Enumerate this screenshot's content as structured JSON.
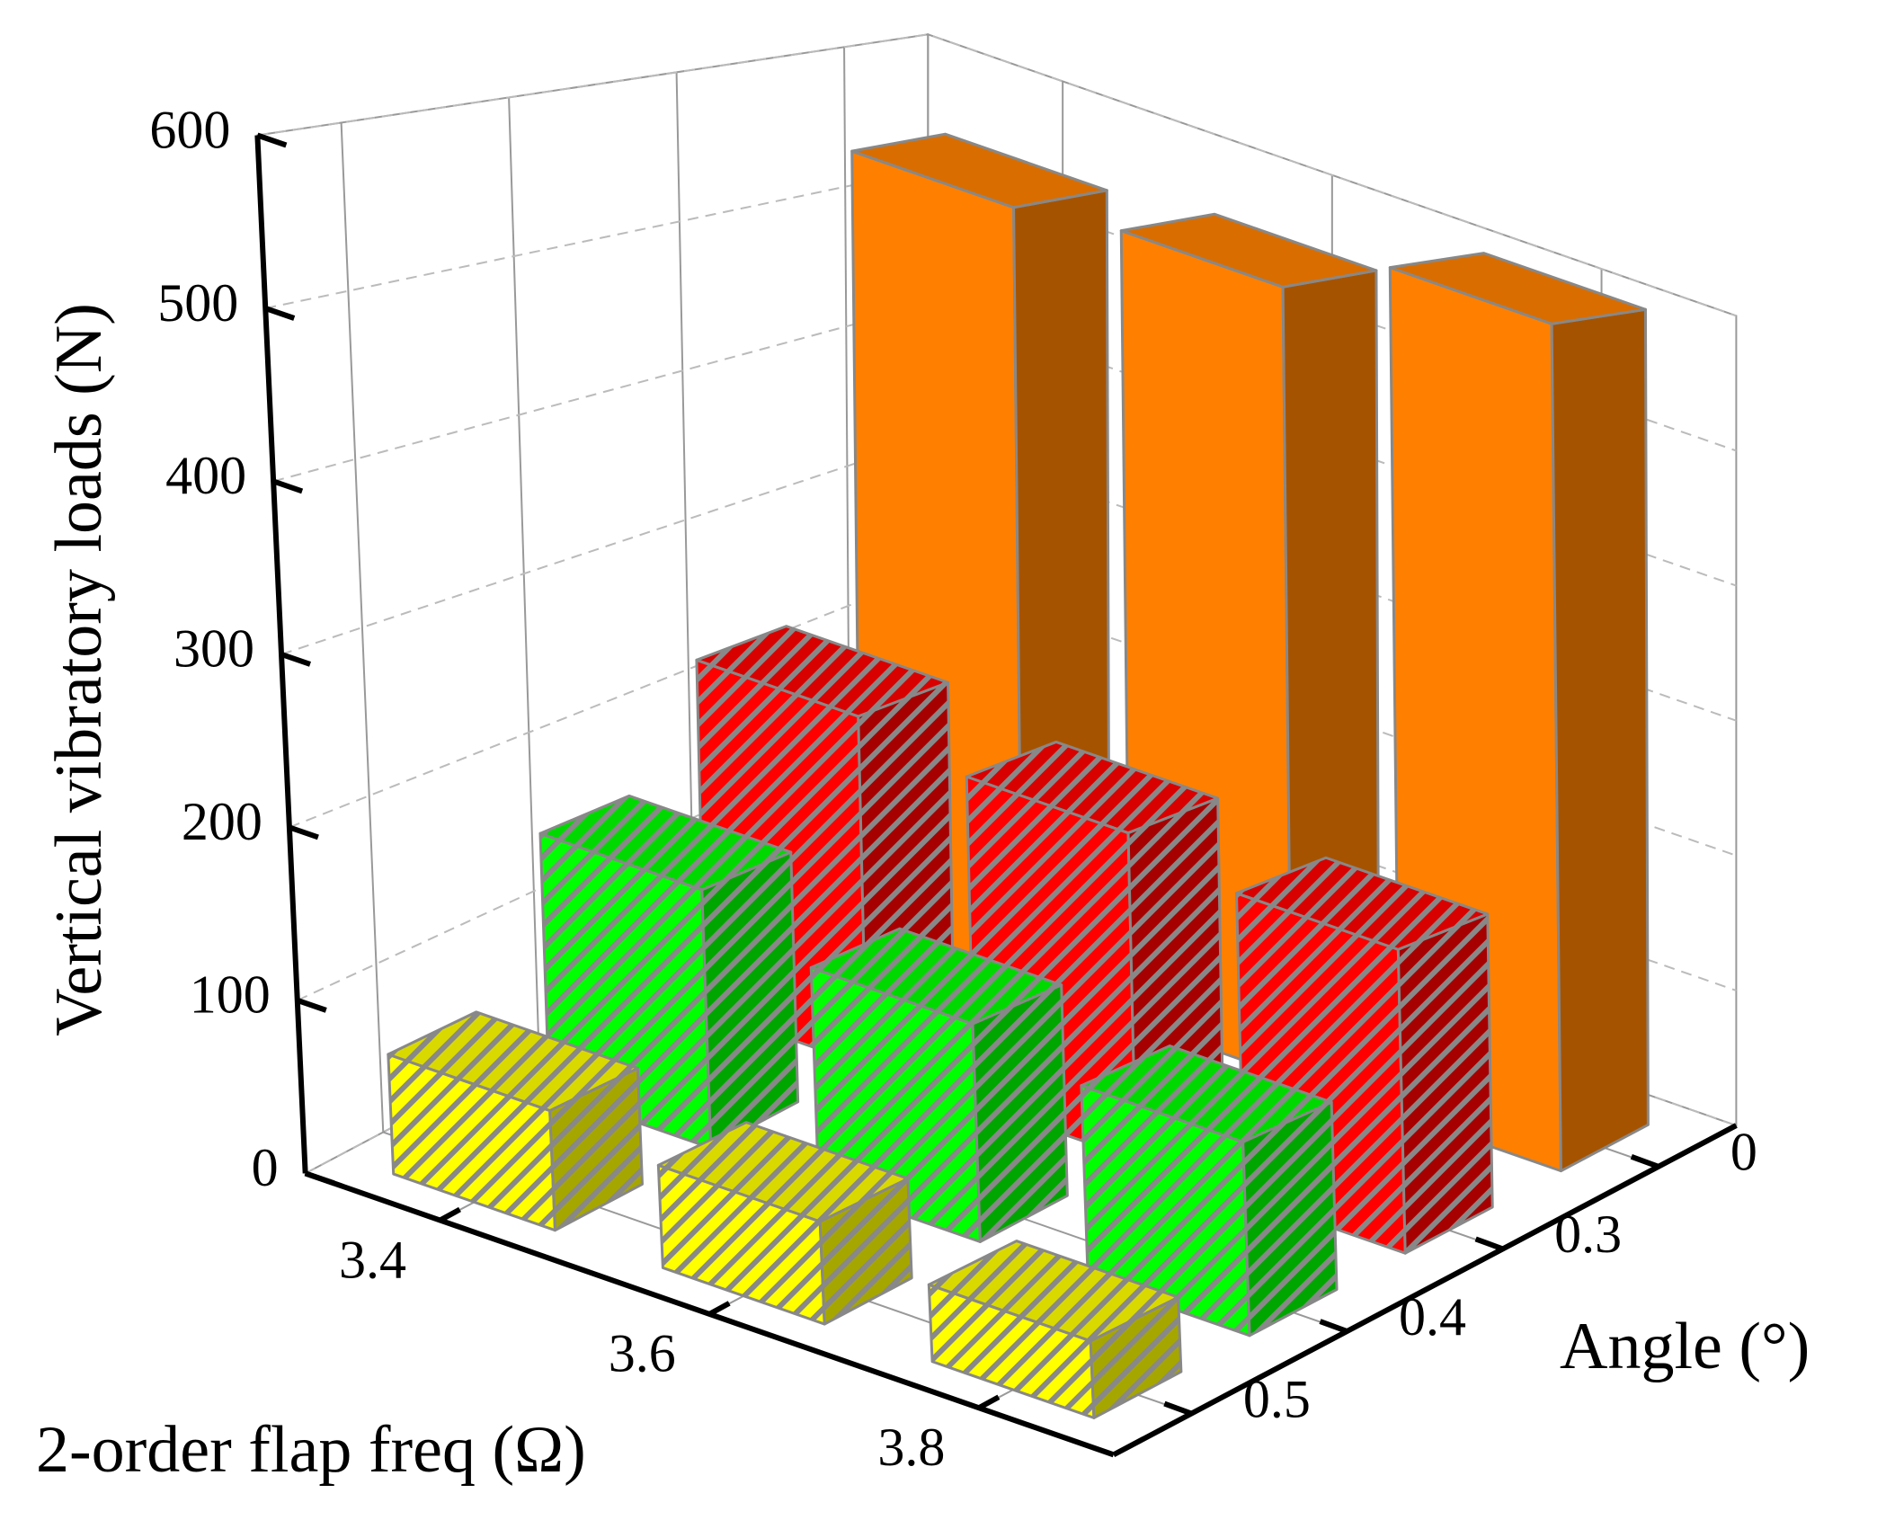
{
  "chart_data": {
    "type": "bar3d",
    "ylabel": "Vertical vibratory loads (N)",
    "xlabel": "2-order flap freq (Ω)",
    "zlabel": "Angle (°)",
    "categories": [
      "3.4",
      "3.6",
      "3.8"
    ],
    "z_categories": [
      "0",
      "0.3",
      "0.4",
      "0.5"
    ],
    "ylim": [
      0,
      600
    ],
    "yticks": [
      0,
      100,
      200,
      300,
      400,
      500,
      600
    ],
    "grid": true,
    "series": [
      {
        "color": "#ff8000",
        "hatch": false,
        "values": [
          545,
          555,
          595
        ]
      },
      {
        "color": "#ff0000",
        "hatch": true,
        "values": [
          230,
          215,
          200
        ]
      },
      {
        "color": "#00ff00",
        "hatch": true,
        "values": [
          160,
          135,
          120
        ]
      },
      {
        "color": "#ffff00",
        "hatch": true,
        "values": [
          70,
          60,
          45
        ]
      }
    ]
  }
}
